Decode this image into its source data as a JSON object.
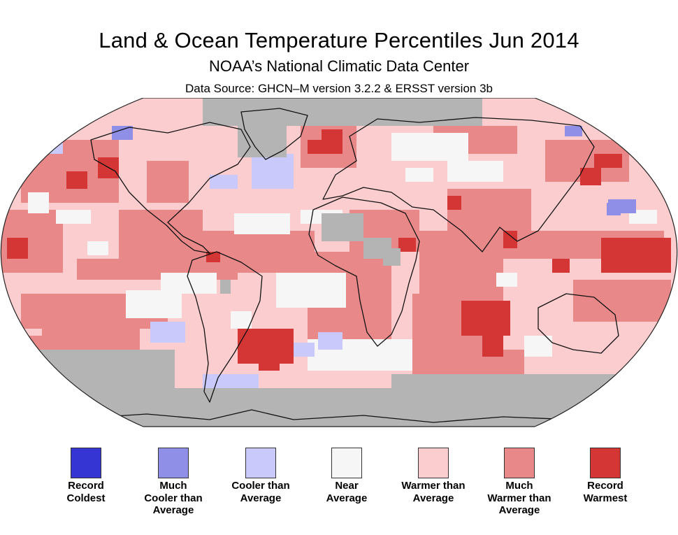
{
  "title": "Land & Ocean Temperature Percentiles Jun 2014",
  "subtitle": "NOAA’s National Climatic Data Center",
  "source": "Data Source: GHCN–M version 3.2.2 & ERSST version 3b",
  "colors": {
    "record_coldest": "#3535d4",
    "much_cooler": "#8f8fe8",
    "cooler": "#c9c9fb",
    "near": "#f6f6f6",
    "warmer": "#fbcdcf",
    "much_warmer": "#e88888",
    "record_warmest": "#d43535",
    "no_data": "#b4b4b4"
  },
  "legend": [
    {
      "label": "Record\nColdest",
      "color": "#3535d4"
    },
    {
      "label": "Much\nCooler than\nAverage",
      "color": "#8f8fe8"
    },
    {
      "label": "Cooler than\nAverage",
      "color": "#c9c9fb"
    },
    {
      "label": "Near\nAverage",
      "color": "#f6f6f6"
    },
    {
      "label": "Warmer than\nAverage",
      "color": "#fbcdcf"
    },
    {
      "label": "Much\nWarmer than\nAverage",
      "color": "#e88888"
    },
    {
      "label": "Record\nWarmest",
      "color": "#d43535"
    }
  ]
}
